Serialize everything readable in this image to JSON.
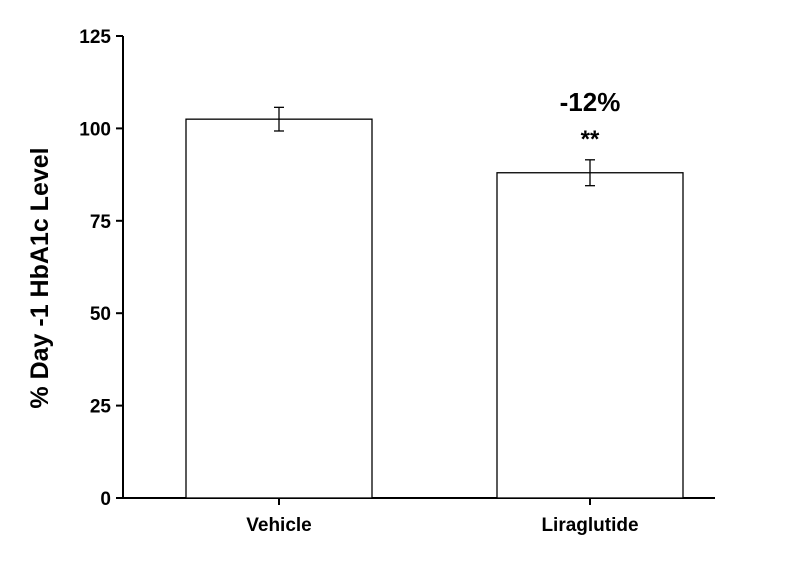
{
  "chart_data": {
    "type": "bar",
    "title": "",
    "xlabel": "",
    "ylabel": "% Day -1 HbA1c Level",
    "ylim": [
      0,
      125
    ],
    "yticks": [
      0,
      25,
      50,
      75,
      100,
      125
    ],
    "categories": [
      "Vehicle",
      "Liraglutide"
    ],
    "values": [
      102.5,
      88.0
    ],
    "errors": [
      3.2,
      3.5
    ],
    "annotations": [
      {
        "category": "Liraglutide",
        "text": "-12%"
      },
      {
        "category": "Liraglutide",
        "text": "**"
      }
    ],
    "grid": false,
    "bar_fill": "#ffffff",
    "bar_stroke": "#000000"
  }
}
